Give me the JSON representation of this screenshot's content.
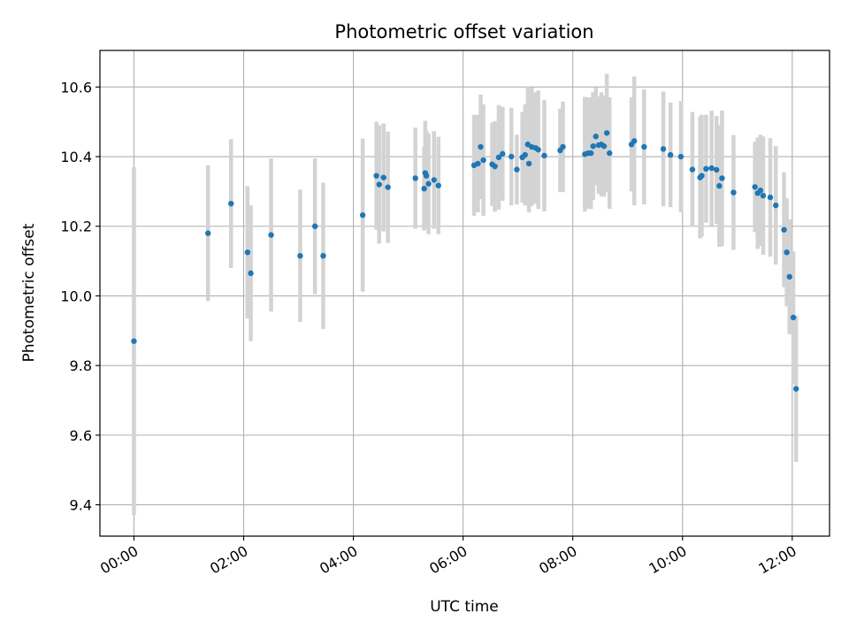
{
  "chart_data": {
    "type": "scatter",
    "title": "Photometric offset variation",
    "xlabel": "UTC time",
    "ylabel": "Photometric offset",
    "x_unit": "hours (UTC)",
    "xlim": [
      -0.62,
      12.68
    ],
    "ylim": [
      9.31,
      10.705
    ],
    "grid": true,
    "legend": "none",
    "colors": {
      "point": "#1f77b4",
      "errorbar": "#d3d3d3",
      "grid": "#b0b0b0"
    },
    "x_ticks": [
      {
        "value": 0,
        "label": "00:00"
      },
      {
        "value": 2,
        "label": "02:00"
      },
      {
        "value": 4,
        "label": "04:00"
      },
      {
        "value": 6,
        "label": "06:00"
      },
      {
        "value": 8,
        "label": "08:00"
      },
      {
        "value": 10,
        "label": "10:00"
      },
      {
        "value": 12,
        "label": "12:00"
      }
    ],
    "y_ticks": [
      {
        "value": 9.4,
        "label": "9.4"
      },
      {
        "value": 9.6,
        "label": "9.6"
      },
      {
        "value": 9.8,
        "label": "9.8"
      },
      {
        "value": 10.0,
        "label": "10.0"
      },
      {
        "value": 10.2,
        "label": "10.2"
      },
      {
        "value": 10.4,
        "label": "10.4"
      },
      {
        "value": 10.6,
        "label": "10.6"
      }
    ],
    "points": [
      {
        "x": 0.0,
        "y": 9.87,
        "err": 0.5
      },
      {
        "x": 1.35,
        "y": 10.18,
        "err": 0.195
      },
      {
        "x": 1.77,
        "y": 10.265,
        "err": 0.185
      },
      {
        "x": 2.07,
        "y": 10.125,
        "err": 0.19
      },
      {
        "x": 2.13,
        "y": 10.065,
        "err": 0.195
      },
      {
        "x": 2.5,
        "y": 10.175,
        "err": 0.22
      },
      {
        "x": 3.03,
        "y": 10.115,
        "err": 0.19
      },
      {
        "x": 3.3,
        "y": 10.2,
        "err": 0.195
      },
      {
        "x": 3.45,
        "y": 10.115,
        "err": 0.21
      },
      {
        "x": 4.17,
        "y": 10.232,
        "err": 0.22
      },
      {
        "x": 4.42,
        "y": 10.345,
        "err": 0.155
      },
      {
        "x": 4.47,
        "y": 10.32,
        "err": 0.17
      },
      {
        "x": 4.55,
        "y": 10.34,
        "err": 0.155
      },
      {
        "x": 4.63,
        "y": 10.312,
        "err": 0.16
      },
      {
        "x": 5.13,
        "y": 10.338,
        "err": 0.145
      },
      {
        "x": 5.29,
        "y": 10.308,
        "err": 0.12
      },
      {
        "x": 5.31,
        "y": 10.353,
        "err": 0.15
      },
      {
        "x": 5.33,
        "y": 10.345,
        "err": 0.13
      },
      {
        "x": 5.37,
        "y": 10.322,
        "err": 0.145
      },
      {
        "x": 5.47,
        "y": 10.333,
        "err": 0.14
      },
      {
        "x": 5.55,
        "y": 10.317,
        "err": 0.14
      },
      {
        "x": 6.2,
        "y": 10.375,
        "err": 0.145
      },
      {
        "x": 6.27,
        "y": 10.38,
        "err": 0.14
      },
      {
        "x": 6.32,
        "y": 10.428,
        "err": 0.15
      },
      {
        "x": 6.37,
        "y": 10.39,
        "err": 0.16
      },
      {
        "x": 6.53,
        "y": 10.378,
        "err": 0.12
      },
      {
        "x": 6.58,
        "y": 10.372,
        "err": 0.13
      },
      {
        "x": 6.65,
        "y": 10.398,
        "err": 0.15
      },
      {
        "x": 6.72,
        "y": 10.408,
        "err": 0.135
      },
      {
        "x": 6.88,
        "y": 10.4,
        "err": 0.14
      },
      {
        "x": 6.98,
        "y": 10.363,
        "err": 0.1
      },
      {
        "x": 7.08,
        "y": 10.398,
        "err": 0.13
      },
      {
        "x": 7.13,
        "y": 10.405,
        "err": 0.145
      },
      {
        "x": 7.18,
        "y": 10.435,
        "err": 0.165
      },
      {
        "x": 7.2,
        "y": 10.38,
        "err": 0.14
      },
      {
        "x": 7.25,
        "y": 10.428,
        "err": 0.17
      },
      {
        "x": 7.32,
        "y": 10.425,
        "err": 0.16
      },
      {
        "x": 7.37,
        "y": 10.42,
        "err": 0.17
      },
      {
        "x": 7.48,
        "y": 10.403,
        "err": 0.16
      },
      {
        "x": 7.77,
        "y": 10.418,
        "err": 0.12
      },
      {
        "x": 7.82,
        "y": 10.428,
        "err": 0.13
      },
      {
        "x": 8.22,
        "y": 10.407,
        "err": 0.165
      },
      {
        "x": 8.28,
        "y": 10.41,
        "err": 0.16
      },
      {
        "x": 8.33,
        "y": 10.41,
        "err": 0.16
      },
      {
        "x": 8.37,
        "y": 10.43,
        "err": 0.155
      },
      {
        "x": 8.42,
        "y": 10.458,
        "err": 0.14
      },
      {
        "x": 8.47,
        "y": 10.433,
        "err": 0.14
      },
      {
        "x": 8.52,
        "y": 10.435,
        "err": 0.15
      },
      {
        "x": 8.57,
        "y": 10.43,
        "err": 0.145
      },
      {
        "x": 8.62,
        "y": 10.468,
        "err": 0.17
      },
      {
        "x": 8.67,
        "y": 10.41,
        "err": 0.16
      },
      {
        "x": 9.07,
        "y": 10.435,
        "err": 0.135
      },
      {
        "x": 9.12,
        "y": 10.445,
        "err": 0.185
      },
      {
        "x": 9.3,
        "y": 10.428,
        "err": 0.165
      },
      {
        "x": 9.65,
        "y": 10.422,
        "err": 0.165
      },
      {
        "x": 9.78,
        "y": 10.405,
        "err": 0.15
      },
      {
        "x": 9.97,
        "y": 10.4,
        "err": 0.16
      },
      {
        "x": 10.18,
        "y": 10.363,
        "err": 0.165
      },
      {
        "x": 10.32,
        "y": 10.34,
        "err": 0.175
      },
      {
        "x": 10.35,
        "y": 10.345,
        "err": 0.175
      },
      {
        "x": 10.43,
        "y": 10.365,
        "err": 0.155
      },
      {
        "x": 10.53,
        "y": 10.367,
        "err": 0.165
      },
      {
        "x": 10.62,
        "y": 10.362,
        "err": 0.155
      },
      {
        "x": 10.67,
        "y": 10.316,
        "err": 0.175
      },
      {
        "x": 10.72,
        "y": 10.338,
        "err": 0.195
      },
      {
        "x": 10.93,
        "y": 10.297,
        "err": 0.165
      },
      {
        "x": 11.32,
        "y": 10.313,
        "err": 0.13
      },
      {
        "x": 11.37,
        "y": 10.295,
        "err": 0.16
      },
      {
        "x": 11.42,
        "y": 10.303,
        "err": 0.16
      },
      {
        "x": 11.47,
        "y": 10.288,
        "err": 0.17
      },
      {
        "x": 11.6,
        "y": 10.283,
        "err": 0.17
      },
      {
        "x": 11.7,
        "y": 10.26,
        "err": 0.17
      },
      {
        "x": 11.85,
        "y": 10.19,
        "err": 0.165
      },
      {
        "x": 11.9,
        "y": 10.125,
        "err": 0.155
      },
      {
        "x": 11.95,
        "y": 10.055,
        "err": 0.165
      },
      {
        "x": 12.02,
        "y": 9.938,
        "err": 0.19
      },
      {
        "x": 12.07,
        "y": 9.733,
        "err": 0.21
      }
    ]
  }
}
